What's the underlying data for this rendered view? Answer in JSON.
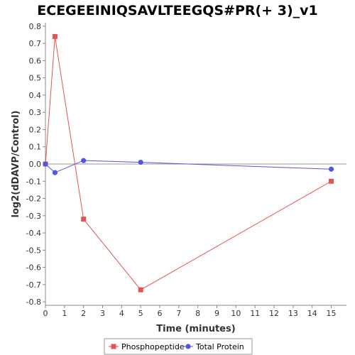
{
  "chart_data": {
    "type": "line",
    "title": "ECEGEEINIQSAVLTEEGQS#PR(+ 3)_v1",
    "xlabel": "Time (minutes)",
    "ylabel": "log2(dDAVP/Control)",
    "xlim": [
      0,
      15.8
    ],
    "ylim": [
      -0.82,
      0.82
    ],
    "xticks": [
      0,
      1,
      2,
      3,
      4,
      5,
      6,
      7,
      8,
      9,
      10,
      11,
      12,
      13,
      14,
      15
    ],
    "yticks": [
      -0.8,
      -0.7,
      -0.6,
      -0.5,
      -0.4,
      -0.3,
      -0.2,
      -0.1,
      0.0,
      0.1,
      0.2,
      0.3,
      0.4,
      0.5,
      0.6,
      0.7,
      0.8
    ],
    "grid": false,
    "legend": "bottom",
    "series": [
      {
        "name": "Phosphopeptide",
        "color": "#e05555",
        "marker": "square",
        "x": [
          0,
          0.5,
          2,
          5,
          15
        ],
        "y": [
          0.0,
          0.74,
          -0.32,
          -0.73,
          -0.1
        ]
      },
      {
        "name": "Total Protein",
        "color": "#5555e0",
        "marker": "circle",
        "x": [
          0,
          0.5,
          2,
          5,
          15
        ],
        "y": [
          0.0,
          -0.05,
          0.02,
          0.01,
          -0.03
        ]
      }
    ]
  }
}
